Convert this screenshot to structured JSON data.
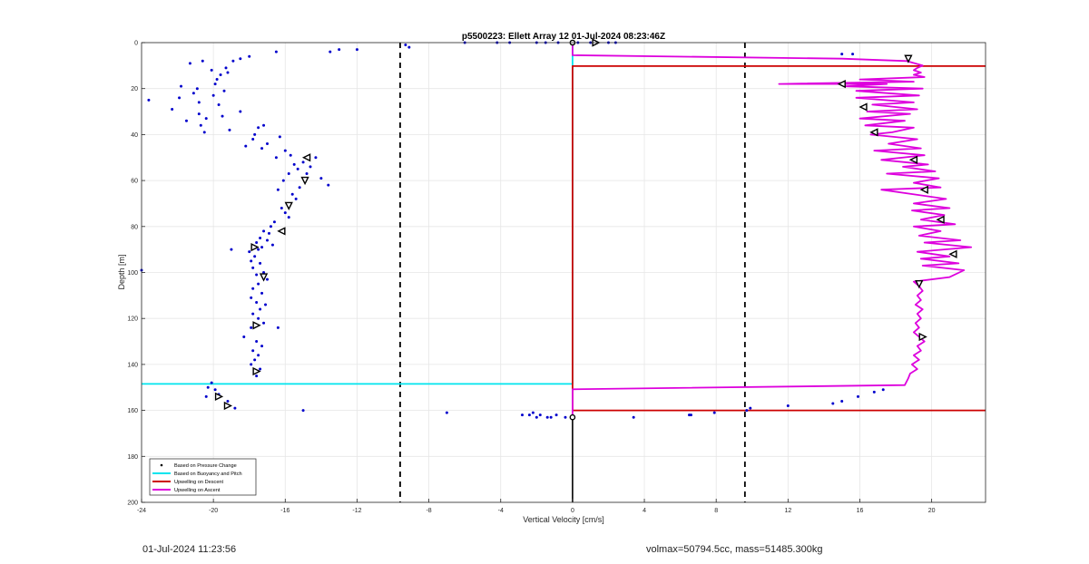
{
  "footer": {
    "timestamp": "01-Jul-2024 11:23:56",
    "vol_mass": "volmax=50794.5cc, mass=51485.300kg"
  },
  "chart_data": {
    "type": "scatter",
    "title": "p5500223: Ellett Array 12 01-Jul-2024 08:23:46Z",
    "xlabel": "Vertical Velocity [cm/s]",
    "ylabel": "Depth [m]",
    "xlim": [
      -24,
      23
    ],
    "ylim": [
      0,
      200
    ],
    "y_reversed": true,
    "grid": true,
    "xticks": [
      -24,
      -20,
      -16,
      -12,
      -8,
      -4,
      0,
      4,
      8,
      12,
      16,
      20
    ],
    "yticks": [
      0,
      20,
      40,
      60,
      80,
      100,
      120,
      140,
      160,
      180,
      200
    ],
    "legend_position": "bottom-left",
    "colors": {
      "pressure": "#0000cc",
      "buoyancy": "#00e5ee",
      "descent": "#cc0000",
      "ascent": "#dd00dd",
      "marker": "#000000",
      "vref": "#000000"
    },
    "legend": [
      {
        "label": "Based on Pressure Change",
        "style": "dot",
        "color": "#000000"
      },
      {
        "label": "Based on Buoyancy and Pitch",
        "style": "line",
        "color": "#00e5ee"
      },
      {
        "label": "Upwelling on Descent",
        "style": "line",
        "color": "#cc0000"
      },
      {
        "label": "Upwelling on Ascent",
        "style": "line",
        "color": "#dd00dd"
      }
    ],
    "vertical_reference_lines": [
      {
        "x": -9.6,
        "style": "dashed"
      },
      {
        "x": 9.6,
        "style": "dashed"
      }
    ],
    "series": [
      {
        "name": "Based on Pressure Change",
        "type": "scatter",
        "points": [
          [
            -23.6,
            25
          ],
          [
            -22.3,
            29
          ],
          [
            -21.9,
            24
          ],
          [
            -21.8,
            19
          ],
          [
            -21.5,
            34
          ],
          [
            -21.3,
            9
          ],
          [
            -21.1,
            22
          ],
          [
            -20.9,
            20
          ],
          [
            -20.8,
            26
          ],
          [
            -20.8,
            31
          ],
          [
            -20.6,
            8
          ],
          [
            -20.7,
            36
          ],
          [
            -20.5,
            39
          ],
          [
            -20.4,
            33
          ],
          [
            -20.1,
            12
          ],
          [
            -20.0,
            23
          ],
          [
            -19.9,
            18
          ],
          [
            -19.8,
            16
          ],
          [
            -19.7,
            27
          ],
          [
            -19.6,
            14
          ],
          [
            -19.5,
            32
          ],
          [
            -19.4,
            21
          ],
          [
            -19.3,
            11
          ],
          [
            -19.2,
            13
          ],
          [
            -19.1,
            38
          ],
          [
            -18.9,
            8
          ],
          [
            -18.5,
            7
          ],
          [
            -18.0,
            6
          ],
          [
            -18.2,
            45
          ],
          [
            -17.8,
            42
          ],
          [
            -17.7,
            40
          ],
          [
            -17.5,
            37
          ],
          [
            -17.2,
            36
          ],
          [
            -17.3,
            46
          ],
          [
            -17.0,
            44
          ],
          [
            -16.5,
            50
          ],
          [
            -16.3,
            41
          ],
          [
            -16.0,
            47
          ],
          [
            -15.7,
            49
          ],
          [
            -15.5,
            53
          ],
          [
            -15.3,
            55
          ],
          [
            -15.0,
            52
          ],
          [
            -14.8,
            57
          ],
          [
            -14.6,
            54
          ],
          [
            -14.3,
            50
          ],
          [
            -14.0,
            59
          ],
          [
            -13.6,
            62
          ],
          [
            -15.8,
            57
          ],
          [
            -16.1,
            60
          ],
          [
            -16.4,
            64
          ],
          [
            -15.6,
            66
          ],
          [
            -15.4,
            68
          ],
          [
            -15.2,
            63
          ],
          [
            -15.9,
            70
          ],
          [
            -16.2,
            72
          ],
          [
            -16.0,
            74
          ],
          [
            -15.8,
            76
          ],
          [
            -16.6,
            78
          ],
          [
            -16.8,
            80
          ],
          [
            -17.2,
            82
          ],
          [
            -16.9,
            83
          ],
          [
            -17.4,
            85
          ],
          [
            -17.0,
            86
          ],
          [
            -17.6,
            87
          ],
          [
            -17.3,
            89
          ],
          [
            -16.7,
            88
          ],
          [
            -17.5,
            90
          ],
          [
            -18.0,
            91
          ],
          [
            -17.7,
            93
          ],
          [
            -17.9,
            95
          ],
          [
            -17.4,
            96
          ],
          [
            -17.8,
            98
          ],
          [
            -17.2,
            100
          ],
          [
            -17.6,
            101
          ],
          [
            -17.0,
            103
          ],
          [
            -17.5,
            105
          ],
          [
            -17.8,
            107
          ],
          [
            -17.3,
            109
          ],
          [
            -17.9,
            111
          ],
          [
            -17.6,
            113
          ],
          [
            -17.1,
            114
          ],
          [
            -17.4,
            116
          ],
          [
            -17.8,
            118
          ],
          [
            -17.5,
            120
          ],
          [
            -17.2,
            122
          ],
          [
            -17.9,
            124
          ],
          [
            -16.4,
            124
          ],
          [
            -18.3,
            128
          ],
          [
            -17.6,
            130
          ],
          [
            -17.3,
            132
          ],
          [
            -17.8,
            134
          ],
          [
            -17.5,
            136
          ],
          [
            -17.7,
            138
          ],
          [
            -17.9,
            140
          ],
          [
            -17.4,
            142
          ],
          [
            -17.6,
            145
          ],
          [
            -18.5,
            30
          ],
          [
            -24.0,
            99
          ],
          [
            -19.0,
            90
          ],
          [
            -12.0,
            3
          ],
          [
            -13.0,
            3
          ],
          [
            -13.5,
            4
          ],
          [
            -16.5,
            4
          ],
          [
            -9.3,
            1
          ],
          [
            -9.1,
            2
          ],
          [
            -6.0,
            0
          ],
          [
            -4.2,
            0
          ],
          [
            -3.5,
            0
          ],
          [
            -2.0,
            0
          ],
          [
            -1.5,
            0
          ],
          [
            -0.8,
            0
          ],
          [
            0.3,
            0
          ],
          [
            1.0,
            0
          ],
          [
            2.0,
            0
          ],
          [
            2.4,
            0
          ],
          [
            15.0,
            5
          ],
          [
            15.6,
            5
          ],
          [
            -20.1,
            148
          ],
          [
            -20.3,
            150
          ],
          [
            -19.9,
            151
          ],
          [
            -20.4,
            154
          ],
          [
            -19.7,
            153
          ],
          [
            -19.2,
            156
          ],
          [
            -18.8,
            159
          ],
          [
            -15.0,
            160
          ],
          [
            -7.0,
            161
          ],
          [
            -2.2,
            161
          ],
          [
            -2.8,
            162
          ],
          [
            -2.4,
            162
          ],
          [
            -2.0,
            163
          ],
          [
            -1.8,
            162
          ],
          [
            -1.4,
            163
          ],
          [
            -1.2,
            163
          ],
          [
            -0.9,
            162
          ],
          [
            -0.4,
            163
          ],
          [
            3.4,
            163
          ],
          [
            6.5,
            162
          ],
          [
            6.6,
            162
          ],
          [
            7.9,
            161
          ],
          [
            9.7,
            160
          ],
          [
            9.9,
            159
          ],
          [
            12.0,
            158
          ],
          [
            14.5,
            157
          ],
          [
            15.0,
            156
          ],
          [
            15.9,
            154
          ],
          [
            16.8,
            152
          ],
          [
            17.3,
            151
          ]
        ]
      },
      {
        "name": "Based on Buoyancy and Pitch",
        "type": "line",
        "points": [
          [
            0,
            0
          ],
          [
            0,
            100
          ],
          [
            0,
            148.5
          ],
          [
            -24,
            148.5
          ]
        ]
      },
      {
        "name": "Upwelling on Descent",
        "type": "line",
        "points": [
          [
            23,
            10.2
          ],
          [
            0,
            10.2
          ],
          [
            0,
            160
          ],
          [
            23,
            160
          ]
        ]
      },
      {
        "name": "Upwelling on Ascent",
        "type": "line",
        "points": [
          [
            0,
            163
          ],
          [
            0,
            150.8
          ],
          [
            18.5,
            149
          ],
          [
            18.7,
            146
          ],
          [
            18.8,
            144
          ],
          [
            19.2,
            142
          ],
          [
            18.9,
            140
          ],
          [
            19.3,
            138
          ],
          [
            19.0,
            136
          ],
          [
            19.4,
            134
          ],
          [
            19.2,
            132
          ],
          [
            19.6,
            130
          ],
          [
            19.3,
            128
          ],
          [
            19.0,
            126
          ],
          [
            19.3,
            124
          ],
          [
            19.1,
            122
          ],
          [
            19.4,
            120
          ],
          [
            19.2,
            118
          ],
          [
            19.5,
            116
          ],
          [
            19.1,
            114
          ],
          [
            19.4,
            112
          ],
          [
            19.2,
            110
          ],
          [
            19.5,
            108
          ],
          [
            19.3,
            106
          ],
          [
            19.0,
            104
          ],
          [
            21.0,
            102
          ],
          [
            21.8,
            99
          ],
          [
            19.5,
            97
          ],
          [
            21.5,
            96
          ],
          [
            19.4,
            94
          ],
          [
            21.0,
            93
          ],
          [
            19.2,
            91
          ],
          [
            22.2,
            89
          ],
          [
            19.6,
            87
          ],
          [
            21.6,
            86
          ],
          [
            19.3,
            84
          ],
          [
            20.5,
            82
          ],
          [
            19.0,
            80
          ],
          [
            21.3,
            79
          ],
          [
            19.4,
            77
          ],
          [
            20.7,
            75
          ],
          [
            18.9,
            73
          ],
          [
            21.0,
            72
          ],
          [
            19.0,
            70
          ],
          [
            20.8,
            68
          ],
          [
            17.2,
            64
          ],
          [
            20.5,
            63
          ],
          [
            19.0,
            61
          ],
          [
            20.4,
            59
          ],
          [
            17.5,
            57
          ],
          [
            20.2,
            56
          ],
          [
            18.4,
            54
          ],
          [
            19.8,
            53
          ],
          [
            17.2,
            51
          ],
          [
            19.6,
            49
          ],
          [
            16.8,
            47
          ],
          [
            19.4,
            46
          ],
          [
            17.6,
            44
          ],
          [
            19.2,
            42
          ],
          [
            16.6,
            40
          ],
          [
            17.8,
            39
          ],
          [
            19.0,
            37
          ],
          [
            16.3,
            36
          ],
          [
            18.5,
            34
          ],
          [
            16.0,
            33
          ],
          [
            18.8,
            31
          ],
          [
            16.4,
            30
          ],
          [
            19.2,
            29
          ],
          [
            16.7,
            27
          ],
          [
            19.0,
            26
          ],
          [
            15.8,
            24
          ],
          [
            19.3,
            23
          ],
          [
            15.8,
            21
          ],
          [
            19.5,
            20
          ],
          [
            15.2,
            19
          ],
          [
            17.5,
            18
          ],
          [
            11.5,
            18
          ],
          [
            19.0,
            17
          ],
          [
            16.0,
            16
          ],
          [
            19.6,
            15
          ],
          [
            19.0,
            14
          ],
          [
            19.4,
            13
          ],
          [
            19.0,
            12
          ],
          [
            19.2,
            11
          ],
          [
            19.5,
            10
          ],
          [
            18.6,
            8
          ],
          [
            15.0,
            7
          ],
          [
            0,
            5.5
          ],
          [
            0,
            0
          ]
        ]
      }
    ],
    "markers": [
      {
        "x": 0,
        "y": 0,
        "shape": "circle"
      },
      {
        "x": 1.3,
        "y": 0,
        "shape": "triangle-right"
      },
      {
        "x": -14.8,
        "y": 50,
        "shape": "triangle-left"
      },
      {
        "x": -14.9,
        "y": 60,
        "shape": "triangle-down"
      },
      {
        "x": -15.8,
        "y": 71,
        "shape": "triangle-down"
      },
      {
        "x": -16.2,
        "y": 82,
        "shape": "triangle-left"
      },
      {
        "x": -17.7,
        "y": 89,
        "shape": "triangle-right"
      },
      {
        "x": -17.2,
        "y": 102,
        "shape": "triangle-down"
      },
      {
        "x": -17.6,
        "y": 123,
        "shape": "triangle-right"
      },
      {
        "x": -17.6,
        "y": 143,
        "shape": "triangle-right"
      },
      {
        "x": -19.7,
        "y": 154,
        "shape": "triangle-right"
      },
      {
        "x": -19.2,
        "y": 158,
        "shape": "triangle-right"
      },
      {
        "x": 0,
        "y": 163,
        "shape": "circle"
      },
      {
        "x": 18.7,
        "y": 7,
        "shape": "triangle-down"
      },
      {
        "x": 15.0,
        "y": 18,
        "shape": "triangle-left"
      },
      {
        "x": 16.2,
        "y": 28,
        "shape": "triangle-left"
      },
      {
        "x": 16.8,
        "y": 39,
        "shape": "triangle-left"
      },
      {
        "x": 19.0,
        "y": 51,
        "shape": "triangle-left"
      },
      {
        "x": 19.6,
        "y": 64,
        "shape": "triangle-left"
      },
      {
        "x": 20.5,
        "y": 77,
        "shape": "triangle-left"
      },
      {
        "x": 21.2,
        "y": 92,
        "shape": "triangle-left"
      },
      {
        "x": 19.3,
        "y": 105,
        "shape": "triangle-down"
      },
      {
        "x": 19.5,
        "y": 128,
        "shape": "triangle-right"
      }
    ]
  }
}
